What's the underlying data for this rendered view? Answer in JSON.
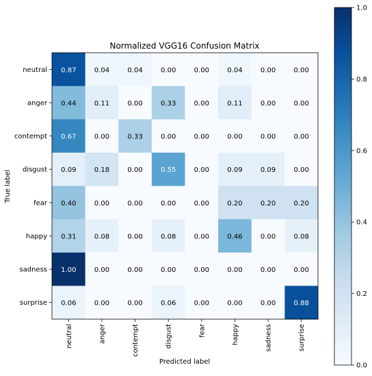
{
  "chart_data": {
    "type": "heatmap",
    "title": "Normalized VGG16 Confusion Matrix",
    "xlabel": "Predicted label",
    "ylabel": "True label",
    "row_labels": [
      "neutral",
      "anger",
      "contempt",
      "disgust",
      "fear",
      "happy",
      "sadness",
      "surprise"
    ],
    "col_labels": [
      "neutral",
      "anger",
      "contempt",
      "disgust",
      "fear",
      "happy",
      "sadness",
      "surprise"
    ],
    "values": [
      [
        0.87,
        0.04,
        0.04,
        0.0,
        0.0,
        0.04,
        0.0,
        0.0
      ],
      [
        0.44,
        0.11,
        0.0,
        0.33,
        0.0,
        0.11,
        0.0,
        0.0
      ],
      [
        0.67,
        0.0,
        0.33,
        0.0,
        0.0,
        0.0,
        0.0,
        0.0
      ],
      [
        0.09,
        0.18,
        0.0,
        0.55,
        0.0,
        0.09,
        0.09,
        0.0
      ],
      [
        0.4,
        0.0,
        0.0,
        0.0,
        0.0,
        0.2,
        0.2,
        0.2
      ],
      [
        0.31,
        0.08,
        0.0,
        0.08,
        0.0,
        0.46,
        0.0,
        0.08
      ],
      [
        1.0,
        0.0,
        0.0,
        0.0,
        0.0,
        0.0,
        0.0,
        0.0
      ],
      [
        0.06,
        0.0,
        0.0,
        0.06,
        0.0,
        0.0,
        0.0,
        0.88
      ]
    ],
    "value_format_decimals": 2,
    "colorbar": {
      "range": [
        0.0,
        1.0
      ],
      "ticks": [
        "0.0",
        "0.2",
        "0.4",
        "0.6",
        "0.8",
        "1.0"
      ],
      "colormap": "Blues"
    },
    "colors": {
      "low": "#f7fbff",
      "high": "#08306b",
      "text_dark": "#000000",
      "text_light": "#ffffff",
      "axis": "#000000"
    },
    "grid": false,
    "legend": "colorbar-right"
  }
}
